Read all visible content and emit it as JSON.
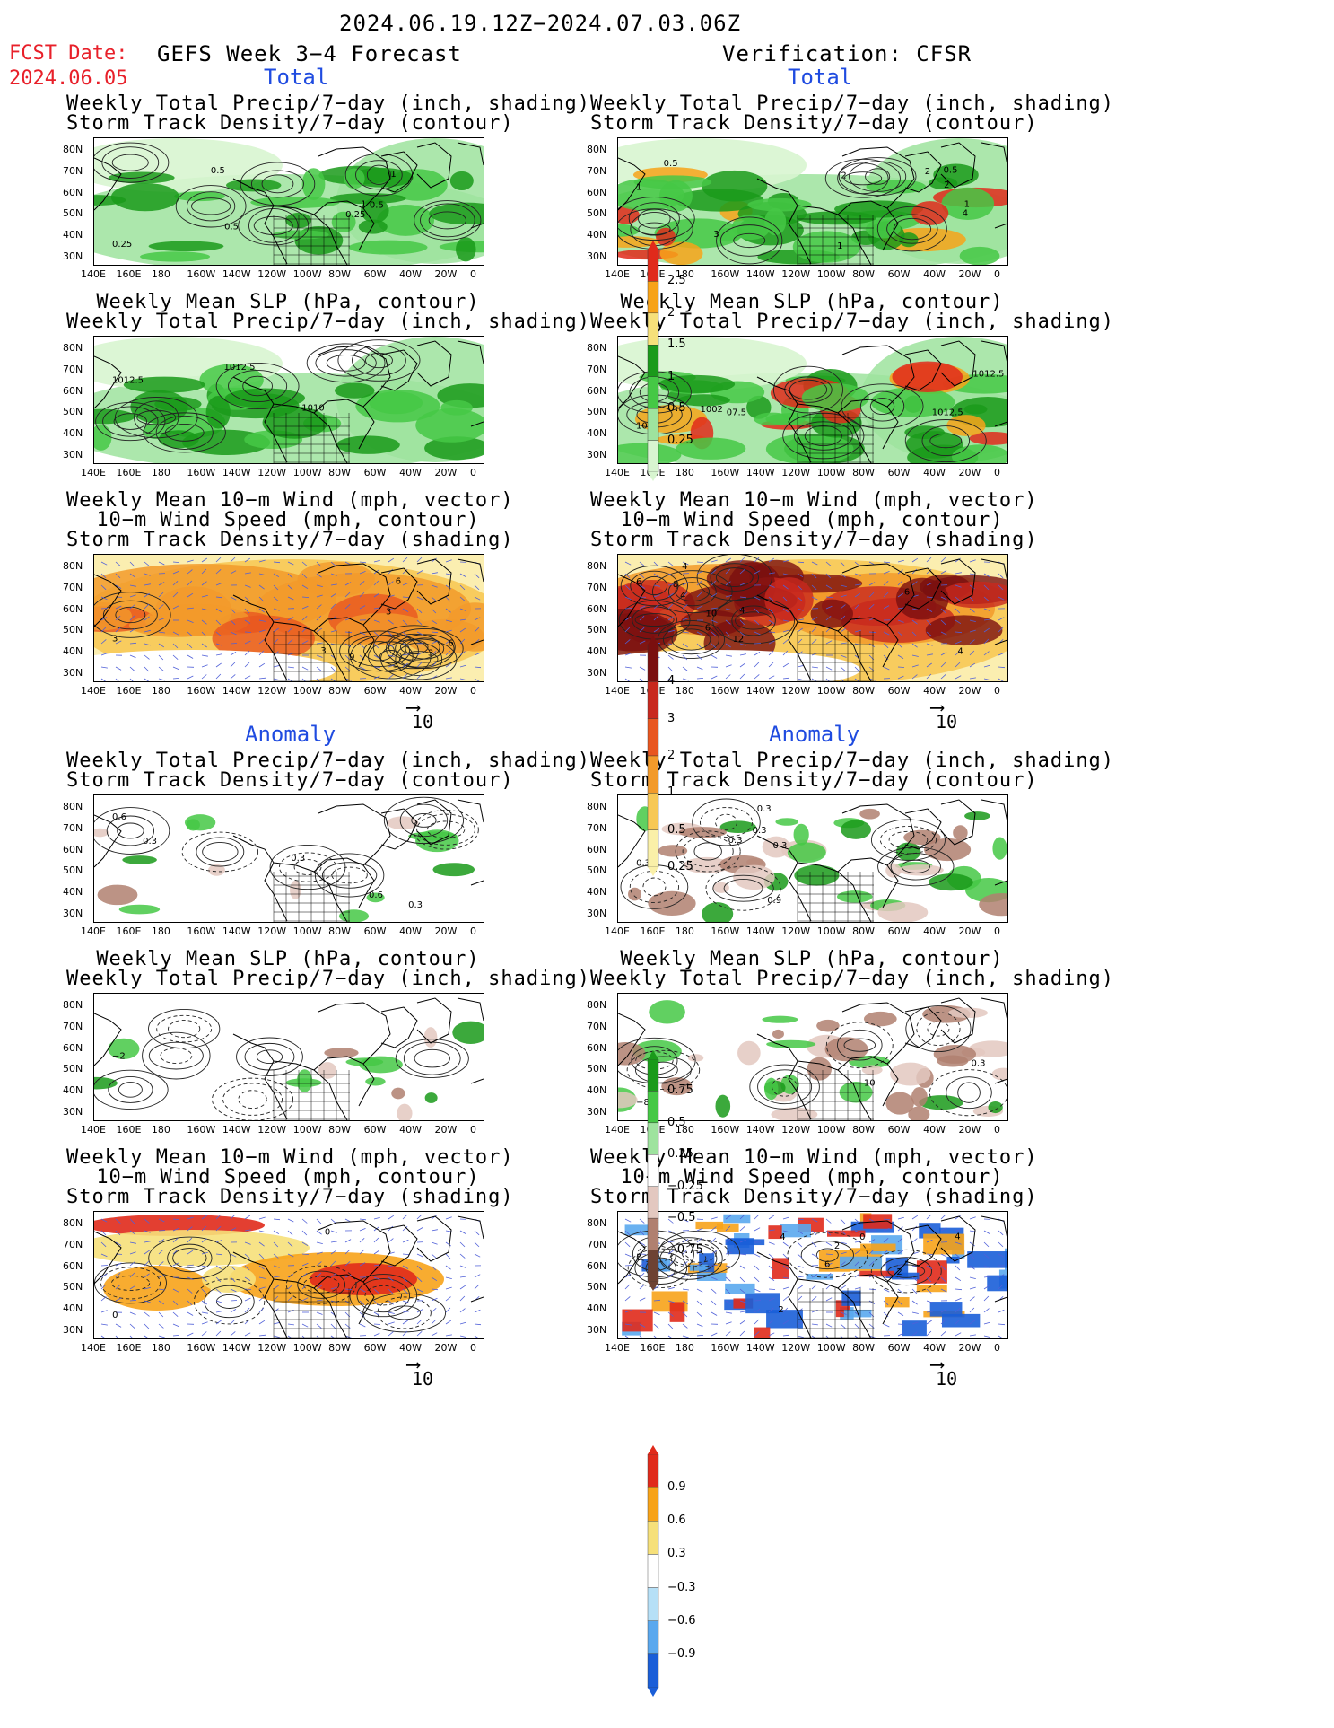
{
  "header": {
    "period": "2024.06.19.12Z−2024.07.03.06Z",
    "fcst_label": "FCST Date:",
    "fcst_date": "2024.06.05",
    "left_heading": "GEFS Week 3−4 Forecast",
    "right_heading": "Verification: CFSR"
  },
  "sections": {
    "total": "Total",
    "anomaly": "Anomaly"
  },
  "titles": {
    "precip_storm": [
      "Weekly Total Precip/7−day (inch, shading)",
      "Storm Track Density/7−day (contour)"
    ],
    "slp_precip": [
      "Weekly Mean SLP (hPa, contour)",
      "Weekly Total Precip/7−day (inch, shading)"
    ],
    "wind_storm": [
      "Weekly Mean 10−m Wind (mph, vector)",
      "10−m Wind Speed (mph, contour)",
      "Storm Track Density/7−day (shading)"
    ]
  },
  "axes": {
    "lat_labels": [
      "80N",
      "70N",
      "60N",
      "50N",
      "40N",
      "30N"
    ],
    "lon_labels": [
      "140E",
      "160E",
      "180",
      "160W",
      "140W",
      "120W",
      "100W",
      "80W",
      "60W",
      "40W",
      "20W",
      "0"
    ]
  },
  "vector_ref": {
    "arrow": "⟶",
    "value": "10"
  },
  "colorbars": {
    "precip_total": {
      "labels": [
        "2.5",
        "2",
        "1.5",
        "1",
        "0.5",
        "0.25"
      ],
      "colors": [
        "#e02a1b",
        "#f7a319",
        "#f6e07a",
        "#1a9a1a",
        "#45c845",
        "#9ee39e",
        "#d8f5d0"
      ]
    },
    "storm_total": {
      "labels": [
        "4",
        "3",
        "2",
        "1",
        "0.5",
        "0.25"
      ],
      "colors": [
        "#7a0f0f",
        "#c8281e",
        "#e8561f",
        "#f29a2a",
        "#f7c855",
        "#faf0a8"
      ]
    },
    "precip_anom": {
      "labels": [
        "0.75",
        "0.5",
        "0.25",
        "−0.25",
        "−0.5",
        "−0.75"
      ],
      "colors": [
        "#1a9a1a",
        "#45c845",
        "#9ee39e",
        "#ffffff",
        "#e3c8c0",
        "#b08070",
        "#6d4233"
      ]
    },
    "storm_anom": {
      "labels": [
        "0.9",
        "0.6",
        "0.3",
        "−0.3",
        "−0.6",
        "−0.9"
      ],
      "colors": [
        "#e02a1b",
        "#f7a319",
        "#f6e07a",
        "#ffffff",
        "#b6e0f7",
        "#5aa8ee",
        "#1a5ed8"
      ]
    }
  },
  "contour_labels": {
    "p1": [
      "0.25",
      "0.5",
      "1",
      "0.5",
      "0.5",
      "0.25",
      "1"
    ],
    "p2": [
      "1",
      "2",
      "1",
      "2",
      "3",
      "2",
      "4",
      "1",
      "0.5",
      "0.5"
    ],
    "p3": [
      "1012.5",
      "1010",
      "1012.5"
    ],
    "p4": [
      "1010",
      "1012.5",
      "1002",
      "1012.5",
      "07.5"
    ],
    "p5": [
      "3",
      "3",
      "3",
      "3",
      "6",
      "6",
      "3",
      "9"
    ],
    "p6": [
      "6",
      "4",
      "6",
      "4",
      "4",
      "10",
      "4",
      "12",
      "8",
      "6"
    ],
    "p7": [
      "0.6",
      "0.3",
      "0.3",
      "0.6",
      "0.3"
    ],
    "p8": [
      "0.3",
      "0.3",
      "0.9",
      "0.3",
      "0.3",
      "0.3"
    ],
    "p9": [
      "−2"
    ],
    "p10": [
      "−8",
      "10",
      "0.3"
    ],
    "p11": [
      "0",
      "0"
    ],
    "p12": [
      "0",
      "4",
      "2",
      "6",
      "2",
      "0",
      "4",
      "2"
    ]
  }
}
